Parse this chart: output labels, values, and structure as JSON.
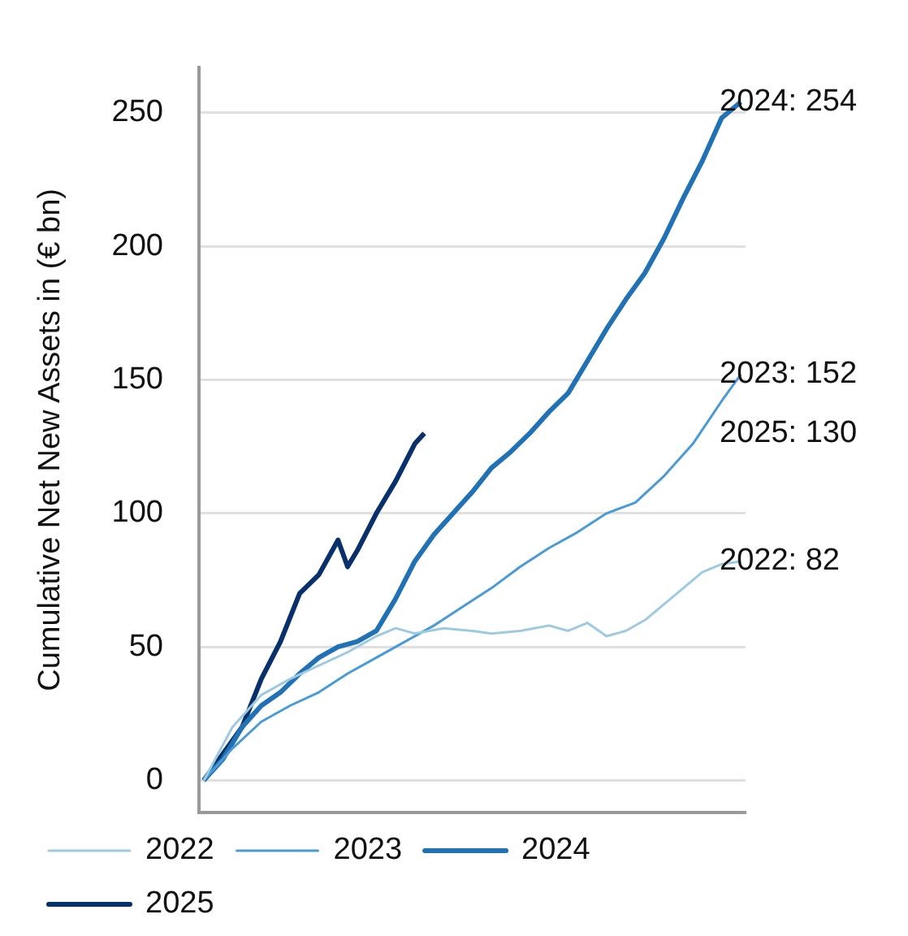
{
  "chart_data": {
    "type": "line",
    "ylabel": "Cumulative Net New Assets in (€ bn)",
    "categories": [
      null,
      null,
      null,
      null,
      null,
      null,
      null,
      null,
      null,
      null,
      null,
      null,
      null,
      null,
      null,
      null,
      null,
      null,
      null,
      null,
      null,
      null,
      null,
      null,
      null,
      null,
      null,
      null,
      null,
      null,
      null,
      null,
      null,
      null,
      null,
      null,
      null,
      null,
      null,
      null,
      null,
      null,
      null,
      null,
      null,
      null,
      null,
      null,
      null,
      null,
      null,
      null,
      null,
      null,
      null,
      null,
      null
    ],
    "series": [
      {
        "name": "2022",
        "color": "#9ecae1",
        "values": [
          0,
          null,
          null,
          20,
          null,
          null,
          32,
          null,
          null,
          38,
          null,
          null,
          43,
          null,
          null,
          48,
          null,
          null,
          54,
          null,
          57,
          null,
          55,
          null,
          null,
          57,
          null,
          null,
          56,
          null,
          55,
          null,
          null,
          56,
          null,
          null,
          58,
          null,
          56,
          null,
          59,
          null,
          54,
          null,
          56,
          null,
          60,
          null,
          66,
          null,
          72,
          null,
          78,
          null,
          81,
          null,
          82
        ]
      },
      {
        "name": "2023",
        "color": "#4a9ad6",
        "values": [
          0,
          null,
          null,
          12,
          null,
          null,
          22,
          null,
          null,
          28,
          null,
          null,
          33,
          null,
          null,
          40,
          null,
          null,
          46,
          null,
          null,
          52,
          null,
          null,
          58,
          null,
          null,
          65,
          null,
          null,
          72,
          null,
          null,
          80,
          null,
          null,
          87,
          null,
          null,
          93,
          null,
          null,
          100,
          null,
          null,
          104,
          null,
          null,
          114,
          null,
          null,
          126,
          null,
          null,
          142,
          null,
          152
        ]
      },
      {
        "name": "2024",
        "color": "#2171b5",
        "values": [
          0,
          null,
          8,
          null,
          20,
          null,
          28,
          null,
          33,
          null,
          40,
          null,
          46,
          null,
          50,
          null,
          52,
          null,
          56,
          null,
          68,
          null,
          82,
          null,
          92,
          null,
          100,
          null,
          108,
          null,
          117,
          null,
          123,
          null,
          130,
          null,
          138,
          null,
          145,
          null,
          157,
          null,
          169,
          null,
          180,
          null,
          190,
          null,
          203,
          null,
          218,
          null,
          232,
          null,
          248,
          null,
          254
        ]
      },
      {
        "name": "2025",
        "color": "#08306b",
        "values": [
          0,
          null,
          10,
          null,
          20,
          null,
          38,
          null,
          52,
          null,
          70,
          null,
          77,
          null,
          90,
          80,
          86,
          null,
          100,
          null,
          112,
          null,
          126,
          130,
          null,
          null,
          null,
          null,
          null,
          null,
          null,
          null,
          null,
          null,
          null,
          null,
          null,
          null,
          null,
          null,
          null,
          null,
          null,
          null,
          null,
          null,
          null,
          null,
          null,
          null,
          null,
          null,
          null,
          null,
          null,
          null,
          null
        ]
      }
    ],
    "ylim": [
      -12,
      267
    ],
    "yticks": [
      0,
      50,
      100,
      150,
      200,
      250
    ],
    "grid": "y",
    "legend": "bottom",
    "tick_labels": "y",
    "marker": "none",
    "line_style": "solid",
    "annotations": [
      "2024: 254",
      "2023: 152",
      "2025: 130",
      "2022: 82"
    ]
  }
}
